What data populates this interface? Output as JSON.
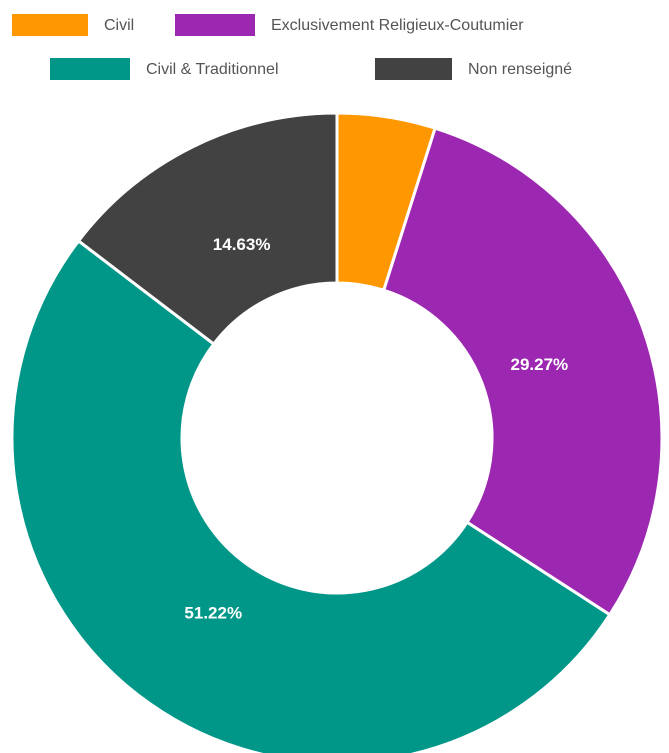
{
  "chart_data": {
    "type": "donut",
    "categories": [
      "Civil",
      "Exclusivement Religieux-Coutumier",
      "Civil & Traditionnel",
      "Non renseigné"
    ],
    "values": [
      4.88,
      29.27,
      51.22,
      14.63
    ],
    "value_labels": [
      null,
      "29.27%",
      "51.22%",
      "14.63%"
    ],
    "colors": [
      "#ff9800",
      "#9c27b0",
      "#009688",
      "#424242"
    ],
    "legend": "top"
  }
}
